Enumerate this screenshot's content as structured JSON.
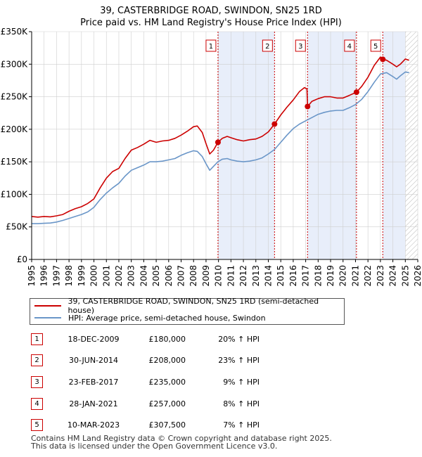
{
  "title": {
    "line1": "39, CASTERBRIDGE ROAD, SWINDON, SN25 1RD",
    "line2": "Price paid vs. HM Land Registry's House Price Index (HPI)"
  },
  "legend": {
    "property": "39, CASTERBRIDGE ROAD, SWINDON, SN25 1RD (semi-detached house)",
    "hpi": "HPI: Average price, semi-detached house, Swindon"
  },
  "colors": {
    "property": "#cc0000",
    "hpi": "#6a96c8",
    "band": "#e8eefa",
    "grid": "#cfcfcf"
  },
  "sales": [
    {
      "num": "1",
      "date": "18-DEC-2009",
      "price": "£180,000",
      "hpi": "20% ↑ HPI"
    },
    {
      "num": "2",
      "date": "30-JUN-2014",
      "price": "£208,000",
      "hpi": "23% ↑ HPI"
    },
    {
      "num": "3",
      "date": "23-FEB-2017",
      "price": "£235,000",
      "hpi": "9% ↑ HPI"
    },
    {
      "num": "4",
      "date": "28-JAN-2021",
      "price": "£257,000",
      "hpi": "8% ↑ HPI"
    },
    {
      "num": "5",
      "date": "10-MAR-2023",
      "price": "£307,500",
      "hpi": "7% ↑ HPI"
    }
  ],
  "footer": {
    "line1": "Contains HM Land Registry data © Crown copyright and database right 2025.",
    "line2": "This data is licensed under the Open Government Licence v3.0."
  },
  "chart_data": {
    "type": "line",
    "xlim": [
      1995,
      2026
    ],
    "ylim": [
      0,
      350000
    ],
    "x_ticks": [
      1995,
      1996,
      1997,
      1998,
      1999,
      2000,
      2001,
      2002,
      2003,
      2004,
      2005,
      2006,
      2007,
      2008,
      2009,
      2010,
      2011,
      2012,
      2013,
      2014,
      2015,
      2016,
      2017,
      2018,
      2019,
      2020,
      2021,
      2022,
      2023,
      2024,
      2025,
      2026
    ],
    "y_ticks": [
      {
        "value": 0,
        "label": "£0"
      },
      {
        "value": 50000,
        "label": "£50K"
      },
      {
        "value": 100000,
        "label": "£100K"
      },
      {
        "value": 150000,
        "label": "£150K"
      },
      {
        "value": 200000,
        "label": "£200K"
      },
      {
        "value": 250000,
        "label": "£250K"
      },
      {
        "value": 300000,
        "label": "£300K"
      },
      {
        "value": 350000,
        "label": "£350K"
      }
    ],
    "shaded_periods": [
      [
        2009.96,
        2014.5
      ],
      [
        2017.15,
        2021.08
      ],
      [
        2023.19,
        2025.0
      ]
    ],
    "hatched_from": 2025.0,
    "annotations": [
      {
        "label": "1",
        "x": 2009.96,
        "y": 180000
      },
      {
        "label": "2",
        "x": 2014.5,
        "y": 208000
      },
      {
        "label": "3",
        "x": 2017.15,
        "y": 235000
      },
      {
        "label": "4",
        "x": 2021.08,
        "y": 257000
      },
      {
        "label": "5",
        "x": 2023.19,
        "y": 307500
      }
    ],
    "series": [
      {
        "name": "39, CASTERBRIDGE ROAD, SWINDON, SN25 1RD (semi-detached house)",
        "points": [
          [
            1995.0,
            66000
          ],
          [
            1995.5,
            65000
          ],
          [
            1996.0,
            66000
          ],
          [
            1996.5,
            65500
          ],
          [
            1997.0,
            67000
          ],
          [
            1997.5,
            69000
          ],
          [
            1998.0,
            74000
          ],
          [
            1998.5,
            78000
          ],
          [
            1999.0,
            81000
          ],
          [
            1999.5,
            86000
          ],
          [
            2000.0,
            93000
          ],
          [
            2000.5,
            110000
          ],
          [
            2001.0,
            125000
          ],
          [
            2001.5,
            135000
          ],
          [
            2002.0,
            140000
          ],
          [
            2002.5,
            155000
          ],
          [
            2003.0,
            168000
          ],
          [
            2003.5,
            172000
          ],
          [
            2004.0,
            177000
          ],
          [
            2004.5,
            183000
          ],
          [
            2005.0,
            180000
          ],
          [
            2005.5,
            182000
          ],
          [
            2006.0,
            183000
          ],
          [
            2006.5,
            186000
          ],
          [
            2007.0,
            191000
          ],
          [
            2007.5,
            197000
          ],
          [
            2008.0,
            204000
          ],
          [
            2008.3,
            205000
          ],
          [
            2008.7,
            195000
          ],
          [
            2009.0,
            178000
          ],
          [
            2009.3,
            162000
          ],
          [
            2009.6,
            168000
          ],
          [
            2009.96,
            180000
          ],
          [
            2010.3,
            186000
          ],
          [
            2010.7,
            189000
          ],
          [
            2011.0,
            187000
          ],
          [
            2011.5,
            184000
          ],
          [
            2012.0,
            182000
          ],
          [
            2012.5,
            184000
          ],
          [
            2013.0,
            185000
          ],
          [
            2013.5,
            189000
          ],
          [
            2014.0,
            196000
          ],
          [
            2014.5,
            208000
          ],
          [
            2015.0,
            222000
          ],
          [
            2015.5,
            234000
          ],
          [
            2016.0,
            245000
          ],
          [
            2016.5,
            258000
          ],
          [
            2016.9,
            264000
          ],
          [
            2017.1,
            262000
          ],
          [
            2017.15,
            235000
          ],
          [
            2017.5,
            243000
          ],
          [
            2018.0,
            247000
          ],
          [
            2018.5,
            250000
          ],
          [
            2019.0,
            250000
          ],
          [
            2019.5,
            248000
          ],
          [
            2020.0,
            248000
          ],
          [
            2020.5,
            252000
          ],
          [
            2021.08,
            257000
          ],
          [
            2021.5,
            266000
          ],
          [
            2022.0,
            280000
          ],
          [
            2022.5,
            298000
          ],
          [
            2023.0,
            311000
          ],
          [
            2023.19,
            307500
          ],
          [
            2023.5,
            306000
          ],
          [
            2024.0,
            300000
          ],
          [
            2024.3,
            296000
          ],
          [
            2024.6,
            300000
          ],
          [
            2025.0,
            308000
          ],
          [
            2025.3,
            306000
          ]
        ]
      },
      {
        "name": "HPI: Average price, semi-detached house, Swindon",
        "points": [
          [
            1995.0,
            55000
          ],
          [
            1995.5,
            55000
          ],
          [
            1996.0,
            55500
          ],
          [
            1996.5,
            56000
          ],
          [
            1997.0,
            57500
          ],
          [
            1997.5,
            60000
          ],
          [
            1998.0,
            63000
          ],
          [
            1998.5,
            66000
          ],
          [
            1999.0,
            69000
          ],
          [
            1999.5,
            73000
          ],
          [
            2000.0,
            80000
          ],
          [
            2000.5,
            92000
          ],
          [
            2001.0,
            102000
          ],
          [
            2001.5,
            110000
          ],
          [
            2002.0,
            117000
          ],
          [
            2002.5,
            128000
          ],
          [
            2003.0,
            137000
          ],
          [
            2003.5,
            141000
          ],
          [
            2004.0,
            145000
          ],
          [
            2004.5,
            150000
          ],
          [
            2005.0,
            150000
          ],
          [
            2005.5,
            151000
          ],
          [
            2006.0,
            153000
          ],
          [
            2006.5,
            155000
          ],
          [
            2007.0,
            160000
          ],
          [
            2007.5,
            164000
          ],
          [
            2008.0,
            167000
          ],
          [
            2008.3,
            166000
          ],
          [
            2008.7,
            158000
          ],
          [
            2009.0,
            147000
          ],
          [
            2009.3,
            137000
          ],
          [
            2009.6,
            143000
          ],
          [
            2009.96,
            150000
          ],
          [
            2010.3,
            154000
          ],
          [
            2010.7,
            155000
          ],
          [
            2011.0,
            153000
          ],
          [
            2011.5,
            151000
          ],
          [
            2012.0,
            150000
          ],
          [
            2012.5,
            151000
          ],
          [
            2013.0,
            153000
          ],
          [
            2013.5,
            156000
          ],
          [
            2014.0,
            162000
          ],
          [
            2014.5,
            169000
          ],
          [
            2015.0,
            180000
          ],
          [
            2015.5,
            191000
          ],
          [
            2016.0,
            201000
          ],
          [
            2016.5,
            208000
          ],
          [
            2017.0,
            213000
          ],
          [
            2017.5,
            218000
          ],
          [
            2018.0,
            223000
          ],
          [
            2018.5,
            226000
          ],
          [
            2019.0,
            228000
          ],
          [
            2019.5,
            229000
          ],
          [
            2020.0,
            229000
          ],
          [
            2020.5,
            233000
          ],
          [
            2021.0,
            238000
          ],
          [
            2021.5,
            246000
          ],
          [
            2022.0,
            258000
          ],
          [
            2022.5,
            272000
          ],
          [
            2023.0,
            285000
          ],
          [
            2023.5,
            287000
          ],
          [
            2024.0,
            281000
          ],
          [
            2024.3,
            277000
          ],
          [
            2024.6,
            282000
          ],
          [
            2025.0,
            288000
          ],
          [
            2025.3,
            287000
          ]
        ]
      }
    ]
  }
}
